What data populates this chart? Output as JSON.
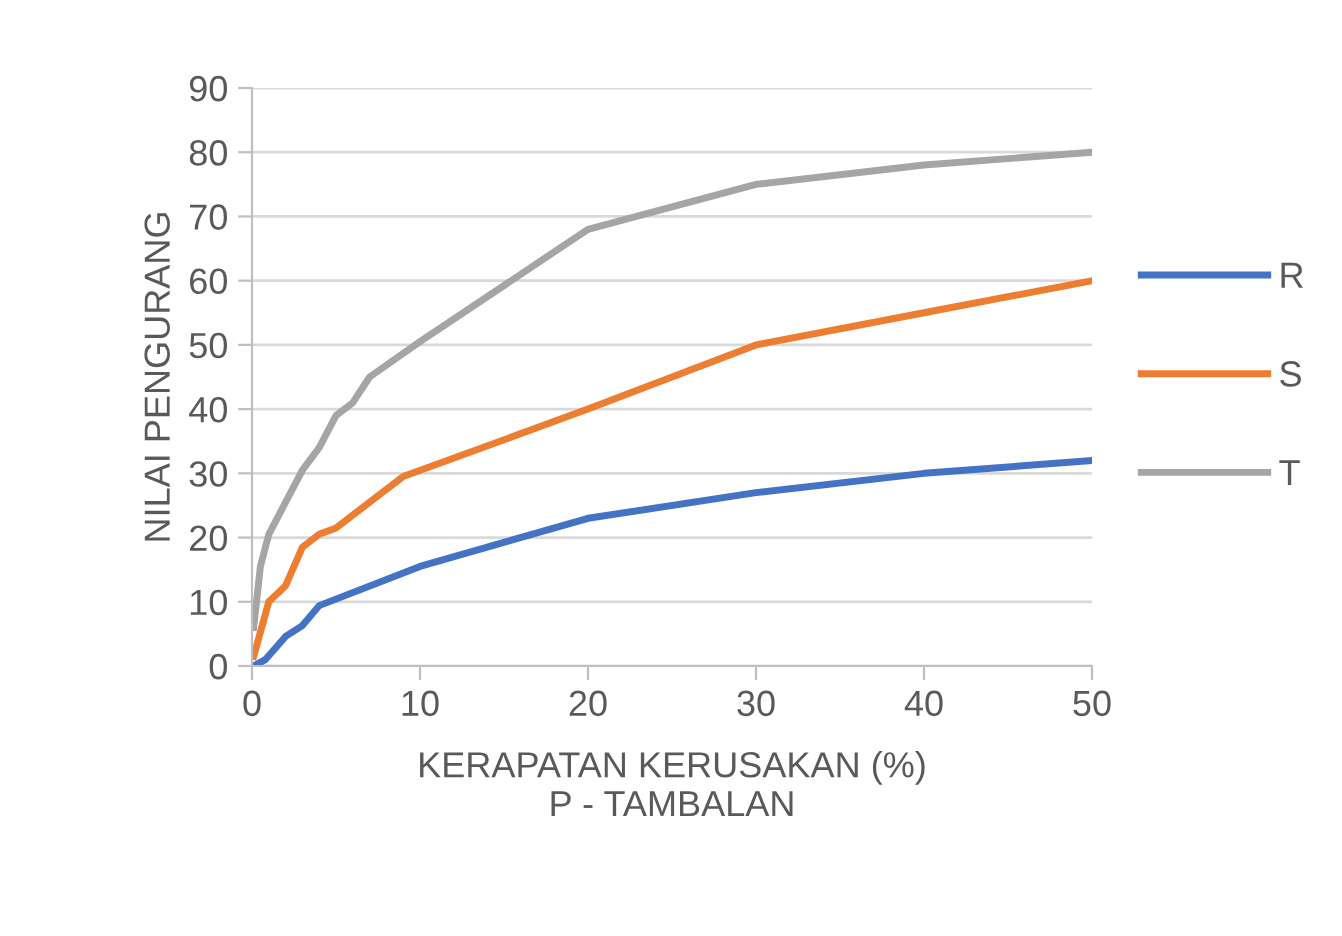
{
  "chart_data": {
    "type": "line",
    "xlabel": "KERAPATAN KERUSAKAN (%)\nP - TAMBALAN",
    "ylabel": "NILAI PENGURANG",
    "xlim": [
      0,
      50
    ],
    "xticks": [
      0,
      10,
      20,
      30,
      40,
      50
    ],
    "ylim": [
      0,
      90
    ],
    "yticks": [
      0,
      10,
      20,
      30,
      40,
      50,
      60,
      70,
      80,
      90
    ],
    "grid": "y",
    "legend": "right",
    "line_style": "solid",
    "marker": "none",
    "series": [
      {
        "name": "R",
        "color": "#4472c4",
        "x": [
          0.1,
          0.8,
          2,
          3,
          4,
          10,
          20,
          30,
          40,
          50
        ],
        "values": [
          0,
          1,
          4.6,
          6.3,
          9.4,
          15.5,
          23,
          27,
          30,
          32
        ]
      },
      {
        "name": "S",
        "color": "#ed7d31",
        "x": [
          0.1,
          1,
          2,
          3,
          4,
          5,
          9,
          20,
          30,
          40,
          50
        ],
        "values": [
          1.5,
          10,
          12.5,
          18.5,
          20.5,
          21.5,
          29.5,
          40,
          50,
          55,
          60
        ]
      },
      {
        "name": "T",
        "color": "#a5a5a5",
        "x": [
          0.1,
          0.5,
          1,
          3,
          4,
          5,
          6,
          7,
          10,
          20,
          30,
          40,
          50
        ],
        "values": [
          6,
          15.5,
          20.5,
          30.5,
          34,
          39,
          41,
          45,
          50.5,
          68,
          75,
          78,
          80
        ]
      }
    ]
  }
}
